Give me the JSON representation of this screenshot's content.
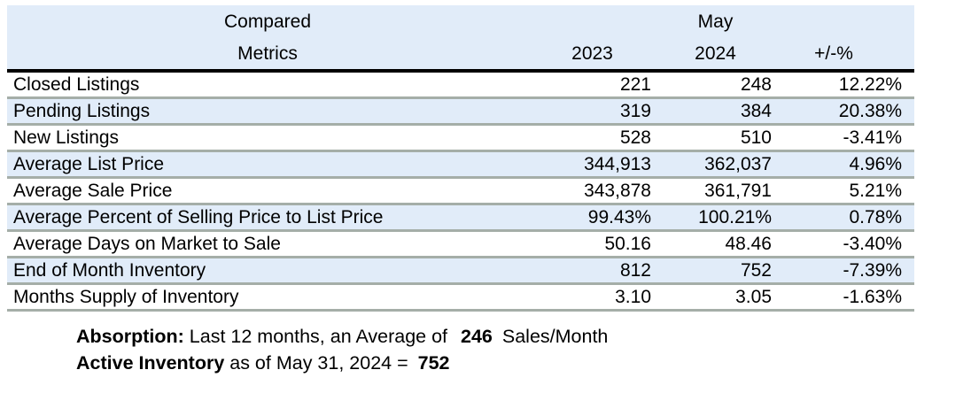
{
  "colors": {
    "accent_blue": "#e1ecf9",
    "divider_gray": "#a5aea8",
    "line_black": "#000000"
  },
  "table": {
    "header_top": {
      "metrics_group": "Compared",
      "period_group": "May"
    },
    "header_bottom": {
      "metrics": "Metrics",
      "y2023": "2023",
      "y2024": "2024",
      "change": "+/-%"
    },
    "rows": [
      {
        "metric": "Closed Listings",
        "y2023": "221",
        "y2024": "248",
        "change": "12.22%"
      },
      {
        "metric": "Pending Listings",
        "y2023": "319",
        "y2024": "384",
        "change": "20.38%"
      },
      {
        "metric": "New Listings",
        "y2023": "528",
        "y2024": "510",
        "change": "-3.41%"
      },
      {
        "metric": "Average List Price",
        "y2023": "344,913",
        "y2024": "362,037",
        "change": "4.96%"
      },
      {
        "metric": "Average Sale Price",
        "y2023": "343,878",
        "y2024": "361,791",
        "change": "5.21%"
      },
      {
        "metric": "Average Percent of Selling Price to List Price",
        "y2023": "99.43%",
        "y2024": "100.21%",
        "change": "0.78%"
      },
      {
        "metric": "Average Days on Market to Sale",
        "y2023": "50.16",
        "y2024": "48.46",
        "change": "-3.40%"
      },
      {
        "metric": "End of Month Inventory",
        "y2023": "812",
        "y2024": "752",
        "change": "-7.39%"
      },
      {
        "metric": "Months Supply of Inventory",
        "y2023": "3.10",
        "y2024": "3.05",
        "change": "-1.63%"
      }
    ]
  },
  "footer": {
    "line1": {
      "bold_label": "Absorption:",
      "text": " Last 12 months, an Average of ",
      "bold_value": "246",
      "suffix": " Sales/Month"
    },
    "line2": {
      "bold_label": "Active Inventory",
      "text": " as of May 31, 2024 = ",
      "bold_value": "752"
    }
  }
}
